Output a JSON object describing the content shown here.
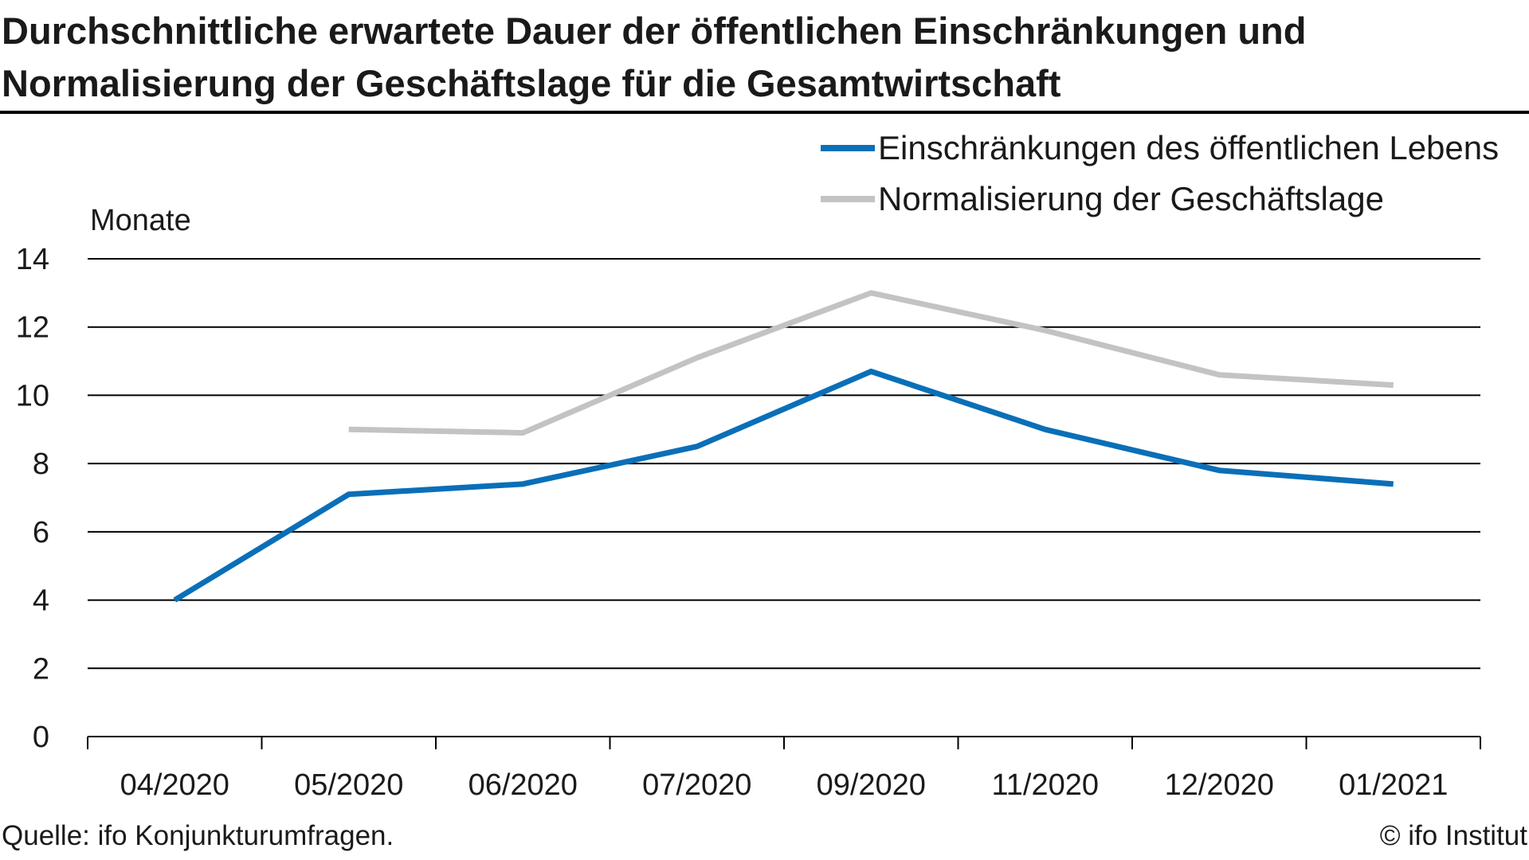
{
  "title": "Durchschnittliche erwartete Dauer der öffentlichen Einschränkungen und Normalisierung der Geschäftslage für die Gesamtwirtschaft",
  "source": "Quelle: ifo Konjunkturumfragen.",
  "copyright": "© ifo Institut",
  "colors": {
    "series1": "#0a6fb8",
    "series2": "#c3c3c3",
    "grid": "#000000"
  },
  "chart_data": {
    "type": "line",
    "title": "Durchschnittliche erwartete Dauer der öffentlichen Einschränkungen und Normalisierung der Geschäftslage für die Gesamtwirtschaft",
    "ylabel": "Monate",
    "xlabel": "",
    "categories": [
      "04/2020",
      "05/2020",
      "06/2020",
      "07/2020",
      "09/2020",
      "11/2020",
      "12/2020",
      "01/2021"
    ],
    "ylim": [
      0,
      14
    ],
    "yticks": [
      0,
      2,
      4,
      6,
      8,
      10,
      12,
      14
    ],
    "grid": true,
    "legend_position": "top-right",
    "series": [
      {
        "name": "Einschränkungen des öffentlichen Lebens",
        "color": "#0a6fb8",
        "values": [
          4.0,
          7.1,
          7.4,
          8.5,
          10.7,
          9.0,
          7.8,
          7.4
        ]
      },
      {
        "name": "Normalisierung der Geschäftslage",
        "color": "#c3c3c3",
        "values": [
          null,
          9.0,
          8.9,
          11.1,
          13.0,
          11.9,
          10.6,
          10.3
        ]
      }
    ]
  }
}
